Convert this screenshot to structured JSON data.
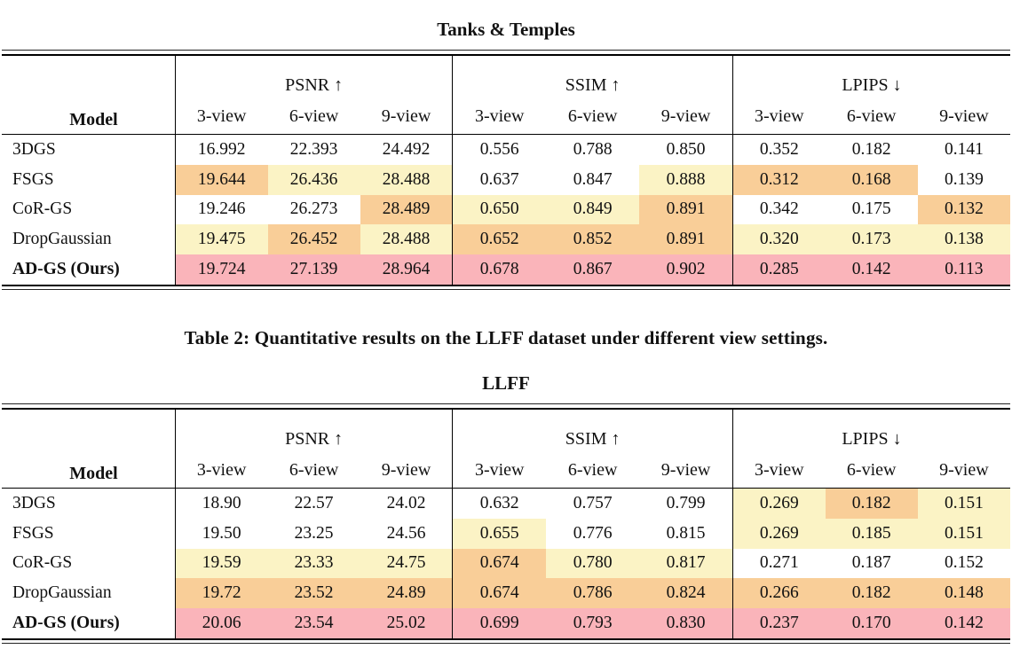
{
  "caption": "Table 2: Quantitative results on the LLFF dataset under different view settings.",
  "highlight_colors": {
    "best": "#FAB4BA",
    "second": "#F9CE98",
    "third": "#FBF3C5"
  },
  "tables": [
    {
      "title": "Tanks & Temples",
      "header": {
        "model": "Model",
        "groups": [
          {
            "label": "PSNR ↑"
          },
          {
            "label": "SSIM ↑"
          },
          {
            "label": "LPIPS ↓"
          }
        ],
        "subcols": [
          "3-view",
          "6-view",
          "9-view"
        ]
      },
      "rows": [
        {
          "model": "3DGS",
          "bold": false,
          "cells": [
            {
              "v": "16.992"
            },
            {
              "v": "22.393"
            },
            {
              "v": "24.492"
            },
            {
              "v": "0.556"
            },
            {
              "v": "0.788"
            },
            {
              "v": "0.850"
            },
            {
              "v": "0.352"
            },
            {
              "v": "0.182"
            },
            {
              "v": "0.141"
            }
          ]
        },
        {
          "model": "FSGS",
          "bold": false,
          "cells": [
            {
              "v": "19.644",
              "h": "second"
            },
            {
              "v": "26.436",
              "h": "third"
            },
            {
              "v": "28.488",
              "h": "third"
            },
            {
              "v": "0.637"
            },
            {
              "v": "0.847"
            },
            {
              "v": "0.888",
              "h": "third"
            },
            {
              "v": "0.312",
              "h": "second"
            },
            {
              "v": "0.168",
              "h": "second"
            },
            {
              "v": "0.139"
            }
          ]
        },
        {
          "model": "CoR-GS",
          "bold": false,
          "cells": [
            {
              "v": "19.246"
            },
            {
              "v": "26.273"
            },
            {
              "v": "28.489",
              "h": "second"
            },
            {
              "v": "0.650",
              "h": "third"
            },
            {
              "v": "0.849",
              "h": "third"
            },
            {
              "v": "0.891",
              "h": "second"
            },
            {
              "v": "0.342"
            },
            {
              "v": "0.175"
            },
            {
              "v": "0.132",
              "h": "second"
            }
          ]
        },
        {
          "model": "DropGaussian",
          "bold": false,
          "cells": [
            {
              "v": "19.475",
              "h": "third"
            },
            {
              "v": "26.452",
              "h": "second"
            },
            {
              "v": "28.488",
              "h": "third"
            },
            {
              "v": "0.652",
              "h": "second"
            },
            {
              "v": "0.852",
              "h": "second"
            },
            {
              "v": "0.891",
              "h": "second"
            },
            {
              "v": "0.320",
              "h": "third"
            },
            {
              "v": "0.173",
              "h": "third"
            },
            {
              "v": "0.138",
              "h": "third"
            }
          ]
        },
        {
          "model": "AD-GS (Ours)",
          "bold": true,
          "cells": [
            {
              "v": "19.724",
              "h": "best"
            },
            {
              "v": "27.139",
              "h": "best"
            },
            {
              "v": "28.964",
              "h": "best"
            },
            {
              "v": "0.678",
              "h": "best"
            },
            {
              "v": "0.867",
              "h": "best"
            },
            {
              "v": "0.902",
              "h": "best"
            },
            {
              "v": "0.285",
              "h": "best"
            },
            {
              "v": "0.142",
              "h": "best"
            },
            {
              "v": "0.113",
              "h": "best"
            }
          ]
        }
      ]
    },
    {
      "title": "LLFF",
      "header": {
        "model": "Model",
        "groups": [
          {
            "label": "PSNR ↑"
          },
          {
            "label": "SSIM ↑"
          },
          {
            "label": "LPIPS ↓"
          }
        ],
        "subcols": [
          "3-view",
          "6-view",
          "9-view"
        ]
      },
      "rows": [
        {
          "model": "3DGS",
          "bold": false,
          "cells": [
            {
              "v": "18.90"
            },
            {
              "v": "22.57"
            },
            {
              "v": "24.02"
            },
            {
              "v": "0.632"
            },
            {
              "v": "0.757"
            },
            {
              "v": "0.799"
            },
            {
              "v": "0.269",
              "h": "third"
            },
            {
              "v": "0.182",
              "h": "second"
            },
            {
              "v": "0.151",
              "h": "third"
            }
          ]
        },
        {
          "model": "FSGS",
          "bold": false,
          "cells": [
            {
              "v": "19.50"
            },
            {
              "v": "23.25"
            },
            {
              "v": "24.56"
            },
            {
              "v": "0.655",
              "h": "third"
            },
            {
              "v": "0.776"
            },
            {
              "v": "0.815"
            },
            {
              "v": "0.269",
              "h": "third"
            },
            {
              "v": "0.185",
              "h": "third"
            },
            {
              "v": "0.151",
              "h": "third"
            }
          ]
        },
        {
          "model": "CoR-GS",
          "bold": false,
          "cells": [
            {
              "v": "19.59",
              "h": "third"
            },
            {
              "v": "23.33",
              "h": "third"
            },
            {
              "v": "24.75",
              "h": "third"
            },
            {
              "v": "0.674",
              "h": "second"
            },
            {
              "v": "0.780",
              "h": "third"
            },
            {
              "v": "0.817",
              "h": "third"
            },
            {
              "v": "0.271"
            },
            {
              "v": "0.187"
            },
            {
              "v": "0.152"
            }
          ]
        },
        {
          "model": "DropGaussian",
          "bold": false,
          "cells": [
            {
              "v": "19.72",
              "h": "second"
            },
            {
              "v": "23.52",
              "h": "second"
            },
            {
              "v": "24.89",
              "h": "second"
            },
            {
              "v": "0.674",
              "h": "second"
            },
            {
              "v": "0.786",
              "h": "second"
            },
            {
              "v": "0.824",
              "h": "second"
            },
            {
              "v": "0.266",
              "h": "second"
            },
            {
              "v": "0.182",
              "h": "second"
            },
            {
              "v": "0.148",
              "h": "second"
            }
          ]
        },
        {
          "model": "AD-GS (Ours)",
          "bold": true,
          "cells": [
            {
              "v": "20.06",
              "h": "best"
            },
            {
              "v": "23.54",
              "h": "best"
            },
            {
              "v": "25.02",
              "h": "best"
            },
            {
              "v": "0.699",
              "h": "best"
            },
            {
              "v": "0.793",
              "h": "best"
            },
            {
              "v": "0.830",
              "h": "best"
            },
            {
              "v": "0.237",
              "h": "best"
            },
            {
              "v": "0.170",
              "h": "best"
            },
            {
              "v": "0.142",
              "h": "best"
            }
          ]
        }
      ]
    }
  ]
}
